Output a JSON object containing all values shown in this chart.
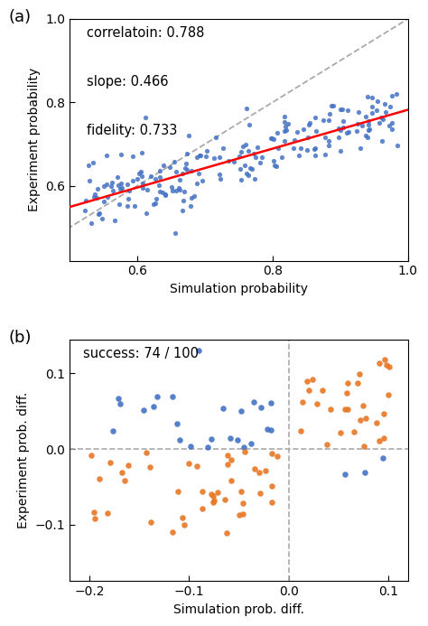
{
  "panel_a": {
    "title_label": "(a)",
    "xlabel": "Simulation probability",
    "ylabel": "Experiment probability",
    "xlim": [
      0.5,
      1.0
    ],
    "ylim": [
      0.42,
      1.0
    ],
    "xticks": [
      0.6,
      0.8,
      1.0
    ],
    "yticks": [
      0.6,
      0.8,
      1.0
    ],
    "annotation": "correlatoin: 0.788\n\nslope: 0.466\n\nfidelity: 0.733",
    "dot_color": "#4472c4",
    "fit_line_color": "red",
    "diag_line_color": "#aaaaaa",
    "slope": 0.466,
    "intercept": 0.316,
    "seed": 42,
    "n_points": 200
  },
  "panel_b": {
    "title_label": "(b)",
    "xlabel": "Simulation prob. diff.",
    "ylabel": "Experiment prob. diff.",
    "xlim": [
      -0.22,
      0.12
    ],
    "ylim": [
      -0.175,
      0.145
    ],
    "xticks": [
      -0.2,
      -0.1,
      0.0,
      0.1
    ],
    "yticks": [
      -0.1,
      0.0,
      0.1
    ],
    "annotation": "success: 74 / 100",
    "color_blue": "#4472c4",
    "color_orange": "#e87724"
  }
}
